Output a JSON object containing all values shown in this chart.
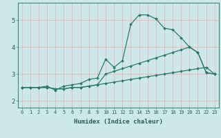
{
  "xlabel": "Humidex (Indice chaleur)",
  "bg_color": "#cce8ea",
  "grid_color": "#f0b0b0",
  "line_color": "#2a7a6e",
  "xlim": [
    -0.5,
    23.5
  ],
  "ylim": [
    1.75,
    5.65
  ],
  "xticks": [
    0,
    1,
    2,
    3,
    4,
    5,
    6,
    7,
    8,
    9,
    10,
    11,
    12,
    13,
    14,
    15,
    16,
    17,
    18,
    19,
    20,
    21,
    22,
    23
  ],
  "yticks": [
    2,
    3,
    4,
    5
  ],
  "line1_x": [
    0,
    1,
    2,
    3,
    4,
    5,
    6,
    7,
    8,
    9,
    10,
    11,
    12,
    13,
    14,
    15,
    16,
    17,
    18,
    19,
    20,
    21,
    22,
    23
  ],
  "line1_y": [
    2.5,
    2.5,
    2.5,
    2.55,
    2.4,
    2.55,
    2.6,
    2.65,
    2.8,
    2.85,
    3.55,
    3.25,
    3.5,
    4.85,
    5.2,
    5.2,
    5.05,
    4.7,
    4.65,
    4.35,
    4.0,
    3.8,
    3.05,
    3.0
  ],
  "line2_x": [
    0,
    1,
    2,
    3,
    4,
    5,
    6,
    7,
    8,
    9,
    10,
    11,
    12,
    13,
    14,
    15,
    16,
    17,
    18,
    19,
    20,
    21,
    22,
    23
  ],
  "line2_y": [
    2.5,
    2.5,
    2.5,
    2.5,
    2.45,
    2.45,
    2.5,
    2.5,
    2.55,
    2.6,
    2.65,
    2.7,
    2.75,
    2.8,
    2.85,
    2.9,
    2.95,
    3.0,
    3.05,
    3.1,
    3.15,
    3.2,
    3.25,
    3.0
  ],
  "line3_x": [
    0,
    1,
    2,
    3,
    4,
    5,
    6,
    7,
    8,
    9,
    10,
    11,
    12,
    13,
    14,
    15,
    16,
    17,
    18,
    19,
    20,
    21,
    22,
    23
  ],
  "line3_y": [
    2.5,
    2.5,
    2.5,
    2.5,
    2.45,
    2.45,
    2.5,
    2.5,
    2.55,
    2.6,
    3.0,
    3.1,
    3.2,
    3.3,
    3.4,
    3.5,
    3.6,
    3.7,
    3.8,
    3.9,
    4.0,
    3.8,
    3.05,
    3.0
  ]
}
